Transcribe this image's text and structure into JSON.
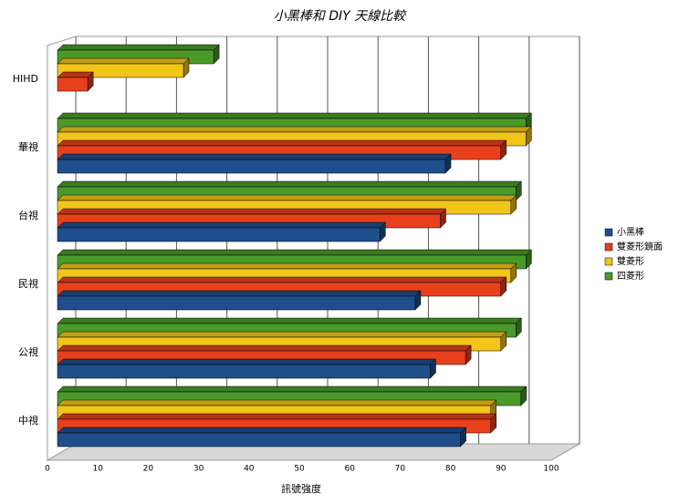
{
  "chart_data": {
    "type": "bar",
    "orientation": "horizontal",
    "title": "小黑棒和 DIY 天線比較",
    "x_label": "訊號強度",
    "categories": [
      "HIHD",
      "華視",
      "台視",
      "民視",
      "公視",
      "中視"
    ],
    "series": [
      {
        "name": "小黑棒",
        "color": "#1f4e8c",
        "values": [
          null,
          77,
          64,
          71,
          74,
          80
        ]
      },
      {
        "name": "雙菱形鏡面",
        "color": "#e8401c",
        "values": [
          6,
          88,
          76,
          88,
          81,
          86
        ]
      },
      {
        "name": "雙菱形",
        "color": "#f2c51b",
        "values": [
          25,
          93,
          90,
          90,
          88,
          86
        ]
      },
      {
        "name": "四菱形",
        "color": "#4a9a2a",
        "values": [
          31,
          93,
          91,
          93,
          91,
          92
        ]
      }
    ],
    "xlim": [
      0,
      100
    ],
    "xticks": [
      0,
      10,
      20,
      30,
      40,
      50,
      60,
      70,
      80,
      90,
      100
    ],
    "grid": true,
    "legend": "right"
  }
}
